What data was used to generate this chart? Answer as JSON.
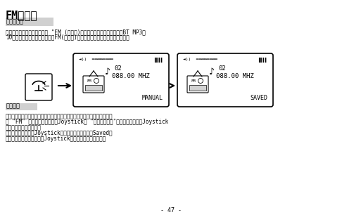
{
  "title": "FM收音機",
  "section1_label": "收聽收音機",
  "section1_text1": "按通話結束鍵回到主目錄，選 “FM (收音機)”選項，收音機功能便被啟動。BT MP3內",
  "section1_text2": "10組電台儲存功能，每次你執行FM(收音機)，它都會播放你上一次收聽的電台。",
  "section2_label": "預設電台",
  "section2_text1": "要取消一個預設的電台，你只須在它原來的位置上設定一個新的電台即可。",
  "section2_text2": "在 “FM” 電台廣播模式時，按Joystick至 “頻道搜尋模式”，透過左推或右推Joystick",
  "section2_text3": "找到你想要的電台頻率。",
  "section2_text4": "要儲存該電台，按著Joystick兩秒，顯示屏上會出現Saved。",
  "section2_text5": "要退出而不儲存該電台，按Joystick一次返回預設頻道模式。",
  "page_num": "- 47 -",
  "screen_freq": "088.00 MHZ",
  "screen_channel": "02",
  "screen_label1": "MANUAL",
  "screen_label2": "SAVED",
  "bg_color": "#ffffff",
  "text_color": "#000000",
  "label_bg": "#d0d0d0"
}
